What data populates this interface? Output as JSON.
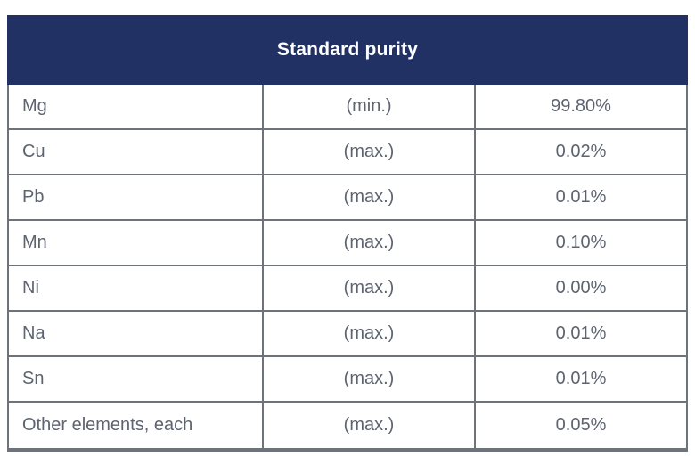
{
  "chart_data": {
    "type": "table",
    "title": "Standard purity",
    "rows": [
      [
        "Mg",
        "(min.)",
        "99.80%"
      ],
      [
        "Cu",
        "(max.)",
        "0.02%"
      ],
      [
        "Pb",
        "(max.)",
        "0.01%"
      ],
      [
        "Mn",
        "(max.)",
        "0.10%"
      ],
      [
        "Ni",
        "(max.)",
        "0.00%"
      ],
      [
        "Na",
        "(max.)",
        "0.01%"
      ],
      [
        "Sn",
        "(max.)",
        "0.01%"
      ],
      [
        "Other elements, each",
        "(max.)",
        "0.05%"
      ]
    ],
    "layout_hints": {
      "header_merged_across_columns": true,
      "column_alignment": [
        "left",
        "center",
        "center"
      ],
      "grid": "on"
    }
  },
  "colors": {
    "header_bg": "#223164",
    "header_text": "#ffffff",
    "border": "#6e737b",
    "cell_text": "#5d6470",
    "background": "#ffffff"
  }
}
